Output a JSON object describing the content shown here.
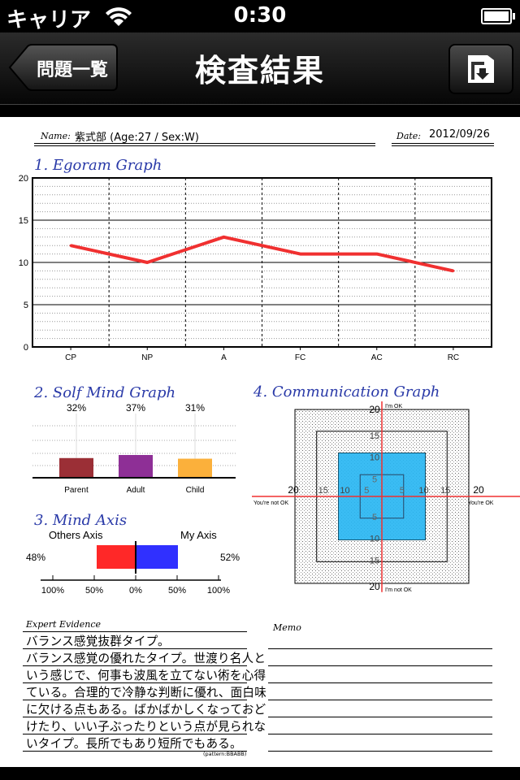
{
  "status_bar": {
    "carrier": "キャリア",
    "time": "0:30"
  },
  "nav": {
    "title": "検査結果",
    "back_label": "問題一覧"
  },
  "report": {
    "name_label": "Name:",
    "name_value": "紫式部  (Age:27 / Sex:W)",
    "date_label": "Date:",
    "date_value": "2012/09/26"
  },
  "sections": {
    "egogram": "1. Egoram Graph",
    "self_mind": "2. Solf Mind Graph",
    "mind_axis": "3. Mind Axis",
    "communication": "4. Communication Graph"
  },
  "chart_data": [
    {
      "type": "line",
      "title": "1. Egoram Graph",
      "categories": [
        "CP",
        "NP",
        "A",
        "FC",
        "AC",
        "RC"
      ],
      "values": [
        12,
        10,
        13,
        11,
        11,
        9
      ],
      "ylim": [
        0,
        20
      ],
      "yticks": [
        "0",
        "5",
        "10",
        "15",
        "20"
      ],
      "color": "#f03030"
    },
    {
      "type": "bar",
      "title": "2. Solf Mind Graph",
      "categories": [
        "Parent",
        "Adult",
        "Child"
      ],
      "values": [
        32,
        37,
        31
      ],
      "labels": [
        "32%",
        "37%",
        "31%"
      ],
      "colors": [
        "#9b2f36",
        "#8e2f96",
        "#fbb03b"
      ]
    },
    {
      "type": "bar",
      "title": "3. Mind Axis",
      "series": [
        {
          "name": "Others Axis",
          "value": 48,
          "label": "48%",
          "color": "#ff2828"
        },
        {
          "name": "My Axis",
          "value": 52,
          "label": "52%",
          "color": "#3030ff"
        }
      ],
      "ticks": [
        "100%",
        "50%",
        "0%",
        "50%",
        "100%"
      ]
    },
    {
      "type": "scatter",
      "title": "4. Communication Graph",
      "axis_labels": {
        "top": "I'm OK",
        "bottom": "I'm not OK",
        "left": "You're not OK",
        "right": "You're OK"
      },
      "ticks": [
        "5",
        "10",
        "15",
        "20"
      ],
      "range": [
        -20,
        20
      ],
      "region": {
        "x": [
          -10,
          10
        ],
        "y": [
          -10,
          10
        ]
      },
      "region_color": "#29b6f2"
    }
  ],
  "evidence": {
    "label": "Expert Evidence",
    "lines": [
      "バランス感覚抜群タイプ。",
      "バランス感覚の優れたタイプ。世渡り名人と",
      "いう感じで、何事も波風を立てない術を心得",
      "ている。合理的で冷静な判断に優れ、面白味",
      "に欠ける点もある。ばかばかしくなっておど",
      "けたり、いい子ぶったりという点が見られな",
      "いタイプ。長所でもあり短所でもある。"
    ],
    "pattern": "(pattern:BBABB)"
  },
  "memo": {
    "label": "Memo"
  },
  "icons": {
    "back": "back-arrow-button",
    "export": "folder-export-icon",
    "wifi": "wifi-icon",
    "battery": "battery-icon"
  }
}
